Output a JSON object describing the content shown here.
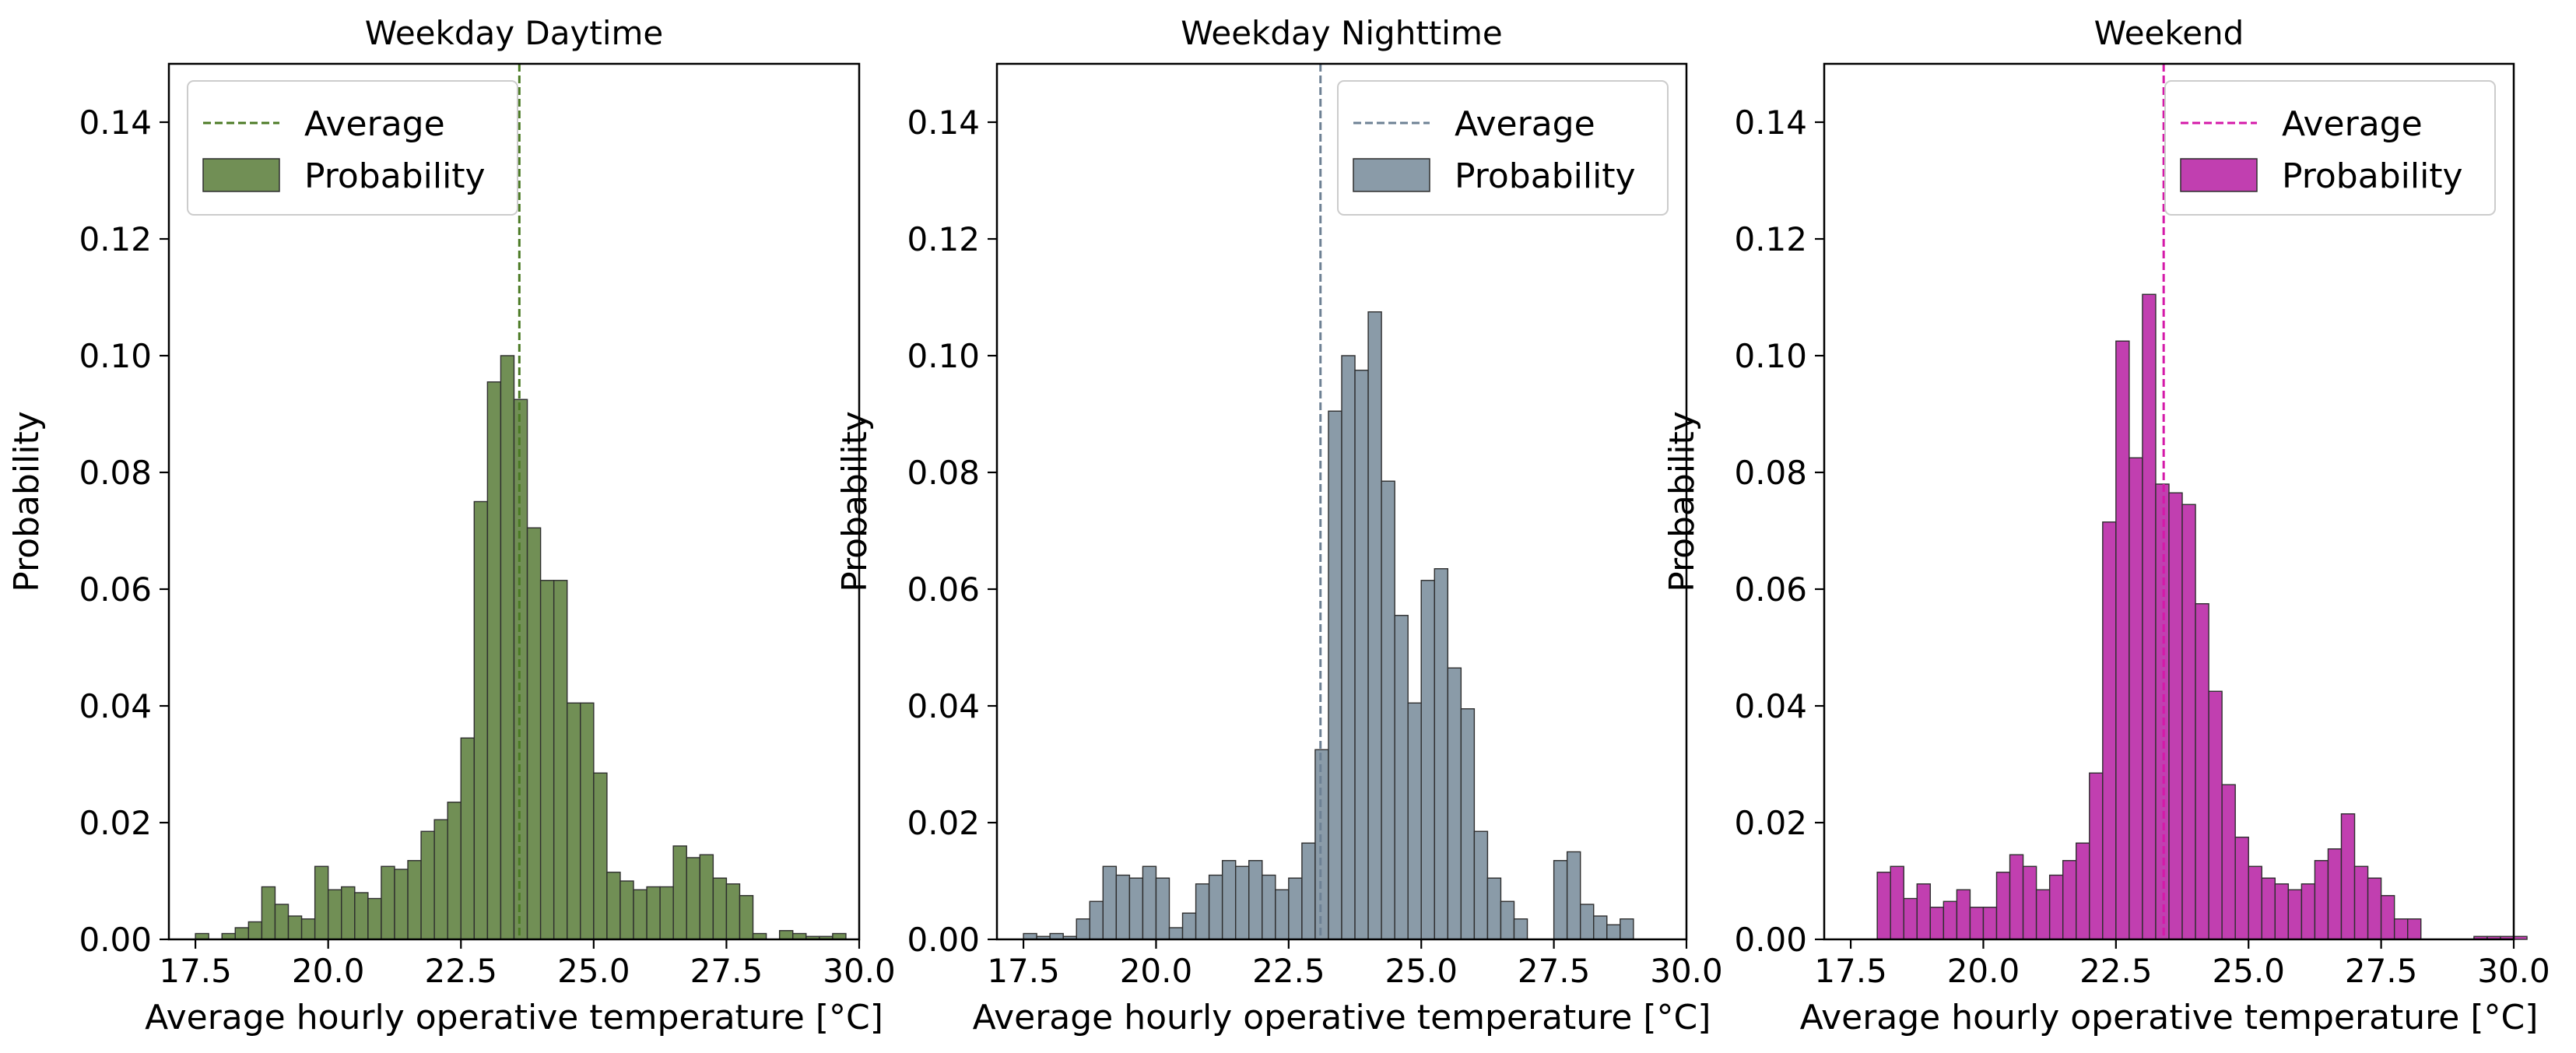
{
  "chart_data": [
    {
      "type": "bar",
      "title": "Weekday Daytime",
      "xlabel": "Average hourly operative temperature [°C]",
      "ylabel": "Probability",
      "xlim": [
        17.0,
        30.0
      ],
      "ylim": [
        0.0,
        0.15
      ],
      "xticks": [
        "17.5",
        "20.0",
        "22.5",
        "25.0",
        "27.5",
        "30.0"
      ],
      "yticks": [
        "0.00",
        "0.02",
        "0.04",
        "0.06",
        "0.08",
        "0.10",
        "0.12",
        "0.14"
      ],
      "bin_start": 17.5,
      "bin_width": 0.25,
      "values": [
        0.001,
        0.0,
        0.001,
        0.002,
        0.003,
        0.009,
        0.006,
        0.004,
        0.0035,
        0.0125,
        0.0085,
        0.009,
        0.008,
        0.007,
        0.0125,
        0.012,
        0.0135,
        0.0185,
        0.0205,
        0.0235,
        0.0345,
        0.075,
        0.0955,
        0.1,
        0.0925,
        0.0705,
        0.0615,
        0.0615,
        0.0405,
        0.0405,
        0.0285,
        0.0115,
        0.01,
        0.0085,
        0.009,
        0.009,
        0.016,
        0.014,
        0.0145,
        0.0105,
        0.0095,
        0.0075,
        0.001,
        0.0,
        0.0015,
        0.001,
        0.0005,
        0.0005,
        0.001
      ],
      "average": 23.6,
      "color": "#718f55",
      "avg_color": "#4b7a24",
      "legend": {
        "average_label": "Average",
        "bar_label": "Probability",
        "position": "upper-left"
      }
    },
    {
      "type": "bar",
      "title": "Weekday Nighttime",
      "xlabel": "Average hourly operative temperature [°C]",
      "ylabel": "Probability",
      "xlim": [
        17.0,
        30.0
      ],
      "ylim": [
        0.0,
        0.15
      ],
      "xticks": [
        "17.5",
        "20.0",
        "22.5",
        "25.0",
        "27.5",
        "30.0"
      ],
      "yticks": [
        "0.00",
        "0.02",
        "0.04",
        "0.06",
        "0.08",
        "0.10",
        "0.12",
        "0.14"
      ],
      "bin_start": 17.5,
      "bin_width": 0.25,
      "values": [
        0.001,
        0.0005,
        0.001,
        0.0005,
        0.0035,
        0.0065,
        0.0125,
        0.011,
        0.0105,
        0.0125,
        0.0105,
        0.002,
        0.0045,
        0.0095,
        0.011,
        0.0135,
        0.0125,
        0.0135,
        0.011,
        0.0085,
        0.0105,
        0.0165,
        0.0325,
        0.0905,
        0.1,
        0.0975,
        0.1075,
        0.0785,
        0.0555,
        0.0405,
        0.0615,
        0.0635,
        0.0465,
        0.0395,
        0.0185,
        0.0105,
        0.0065,
        0.0035,
        0.0,
        0.0,
        0.0135,
        0.015,
        0.006,
        0.004,
        0.0025,
        0.0035
      ],
      "average": 23.1,
      "color": "#8a9ba8",
      "avg_color": "#6d8194",
      "legend": {
        "average_label": "Average",
        "bar_label": "Probability",
        "position": "upper-right"
      }
    },
    {
      "type": "bar",
      "title": "Weekend",
      "xlabel": "Average hourly operative temperature [°C]",
      "ylabel": "Probability",
      "xlim": [
        17.0,
        30.0
      ],
      "ylim": [
        0.0,
        0.15
      ],
      "xticks": [
        "17.5",
        "20.0",
        "22.5",
        "25.0",
        "27.5",
        "30.0"
      ],
      "yticks": [
        "0.00",
        "0.02",
        "0.04",
        "0.06",
        "0.08",
        "0.10",
        "0.12",
        "0.14"
      ],
      "bin_start": 18.0,
      "bin_width": 0.25,
      "values": [
        0.0115,
        0.0125,
        0.007,
        0.0095,
        0.0055,
        0.0065,
        0.0085,
        0.0055,
        0.0055,
        0.0115,
        0.0145,
        0.0125,
        0.0085,
        0.011,
        0.0135,
        0.0165,
        0.0285,
        0.0715,
        0.1025,
        0.0825,
        0.1105,
        0.078,
        0.0765,
        0.0745,
        0.0575,
        0.0425,
        0.0265,
        0.0175,
        0.0125,
        0.0105,
        0.0095,
        0.0085,
        0.0095,
        0.0135,
        0.0155,
        0.0215,
        0.0125,
        0.0105,
        0.0075,
        0.0035,
        0.0035,
        0.0,
        0.0,
        0.0,
        0.0,
        0.0005,
        0.0005,
        0.0005,
        0.0005
      ],
      "average": 23.4,
      "color": "#c13fb0",
      "avg_color": "#d419a8",
      "legend": {
        "average_label": "Average",
        "bar_label": "Probability",
        "position": "upper-right"
      }
    }
  ]
}
